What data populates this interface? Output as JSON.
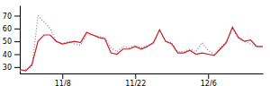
{
  "chart_data": {
    "type": "line",
    "x": [
      0,
      1,
      2,
      3,
      4,
      5,
      6,
      7,
      8,
      9,
      10,
      11,
      12,
      13,
      14,
      15,
      16,
      17,
      18,
      19,
      20,
      21,
      22,
      23,
      24,
      25,
      26,
      27,
      28,
      29,
      30,
      31,
      32,
      33,
      34,
      35,
      36,
      37,
      38,
      39,
      40
    ],
    "series": [
      {
        "color": "#7777bb",
        "line_style": "dotted",
        "values": [
          27,
          28,
          30,
          70,
          65,
          60,
          50,
          48,
          50,
          48,
          47,
          55,
          55,
          54,
          53,
          45,
          42,
          46,
          45,
          47,
          45,
          47,
          48,
          59,
          50,
          49,
          42,
          42,
          44,
          42,
          49,
          43,
          40,
          45,
          50,
          60,
          52,
          50,
          48,
          46,
          45
        ]
      },
      {
        "color": "#cc2222",
        "line_style": "solid",
        "values": [
          28,
          27,
          32,
          50,
          55,
          55,
          50,
          48,
          49,
          50,
          49,
          57,
          55,
          53,
          52,
          41,
          40,
          44,
          44,
          46,
          44,
          46,
          49,
          59,
          50,
          48,
          41,
          41,
          43,
          40,
          41,
          40,
          39,
          44,
          49,
          61,
          53,
          50,
          51,
          46,
          46
        ]
      }
    ],
    "xlim": [
      0,
      40
    ],
    "xticks": [
      {
        "value": 7,
        "label": "11/8"
      },
      {
        "value": 19,
        "label": "11/22"
      },
      {
        "value": 31,
        "label": "12/6"
      }
    ],
    "ylim": [
      25,
      78
    ],
    "yticks": [
      30,
      40,
      50,
      60,
      70
    ]
  }
}
